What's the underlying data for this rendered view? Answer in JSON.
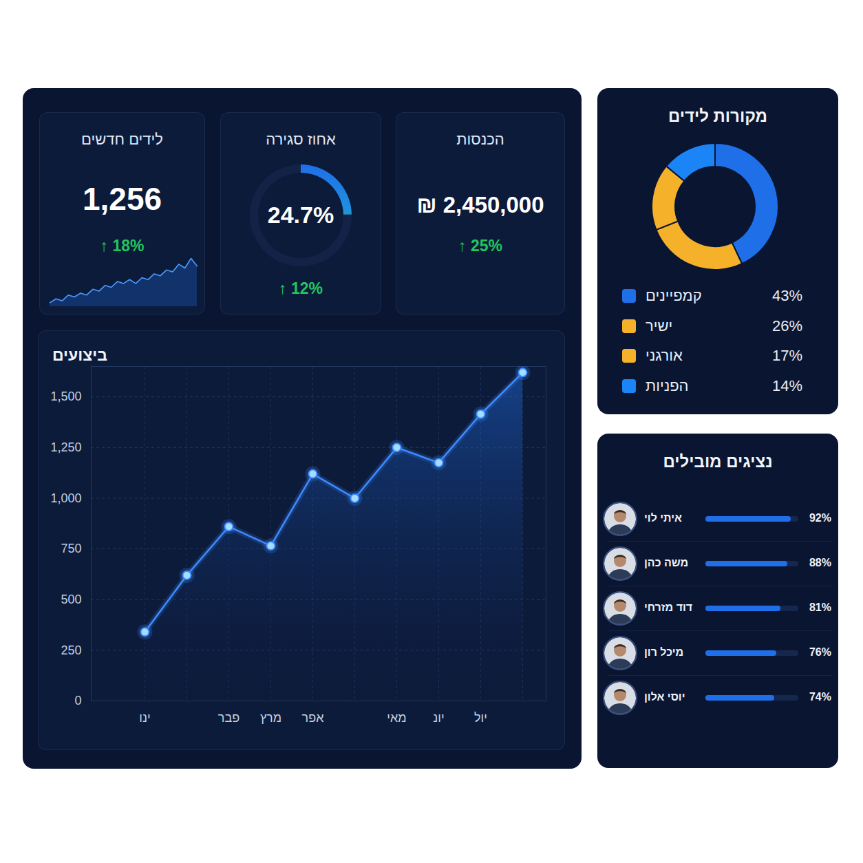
{
  "chart_data": [
    {
      "type": "line",
      "title": "ביצועים",
      "categories": [
        "ינו",
        null,
        "פבר",
        "מרץ",
        "אפר",
        null,
        "מאי",
        "יונ",
        "יול",
        null
      ],
      "values": [
        340,
        620,
        860,
        765,
        1120,
        1000,
        1250,
        1175,
        1415,
        1620
      ],
      "color": "#3b8bff",
      "marker": "circle",
      "ylim": [
        0,
        1650
      ],
      "yticks": [
        0,
        250,
        500,
        750,
        {
          "value": 1000,
          "label": "1,000"
        },
        {
          "value": 1250,
          "label": "1,250"
        },
        {
          "value": 1500,
          "label": "1,500"
        }
      ],
      "grid": true
    },
    {
      "type": "donut",
      "title": "מקורות לידים",
      "categories": [
        "קמפיינים",
        "ישיר",
        "אורגני",
        "הפניות"
      ],
      "values": [
        43,
        26,
        17,
        14
      ],
      "value_labels": [
        "43%",
        "26%",
        "17%",
        "14%"
      ],
      "colors": [
        "#1f6fe8",
        "#f5b12a",
        "#f5b12a",
        "#1b84f7"
      ],
      "legend": "bottom"
    },
    {
      "type": "bar",
      "orientation": "horizontal",
      "title": "נציגים מובילים",
      "categories": [
        "איתי לוי",
        "משה כהן",
        "דוד מזרחי",
        "מיכל רון",
        "יוסי אלון"
      ],
      "values": [
        92,
        88,
        81,
        76,
        74
      ],
      "value_labels": [
        "92%",
        "88%",
        "81%",
        "76%",
        "74%"
      ],
      "color": "#1f6fe8",
      "xlim": [
        0,
        100
      ],
      "data_labels": true,
      "tick_labels": "y"
    }
  ],
  "kpis": [
    {
      "title": "לידים חדשים",
      "value": "1,256",
      "change": "18%",
      "sparkline": [
        2,
        4,
        3,
        6,
        5,
        7,
        6,
        9,
        8,
        11,
        10,
        13,
        12,
        14,
        12,
        15,
        14,
        17,
        16,
        19,
        18,
        22,
        20,
        25,
        21
      ]
    },
    {
      "title": "אחוז סגירה",
      "value": "24.7%",
      "change": "12%",
      "gauge": 24.7
    },
    {
      "title": "הכנסות",
      "value": "₪ 2,450,000",
      "change": "25%"
    }
  ]
}
